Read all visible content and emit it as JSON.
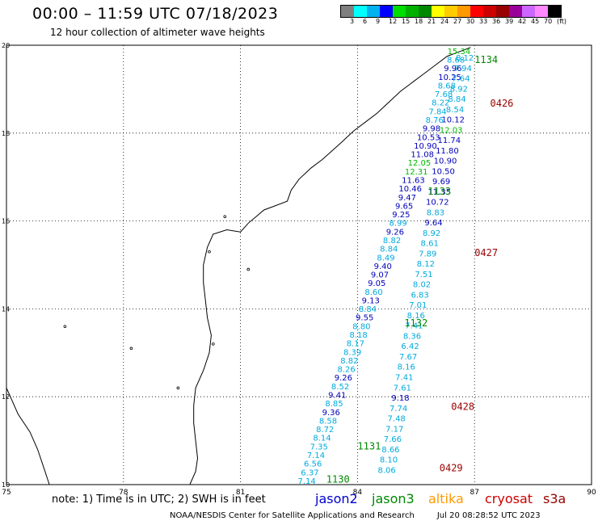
{
  "title": "00:00 – 11:59 UTC 07/18/2023",
  "subtitle": "12 hour collection of altimeter wave heights",
  "colorbar": {
    "colors": [
      "#7f7f7f",
      "#00ffff",
      "#00b2ee",
      "#0000ff",
      "#00dd00",
      "#00b000",
      "#008800",
      "#ffff00",
      "#ffcc00",
      "#ff9900",
      "#ff0000",
      "#cc0000",
      "#990000",
      "#990099",
      "#cc66ff",
      "#ff88ff",
      "#000000"
    ],
    "labels": [
      "3",
      "6",
      "9",
      "12",
      "15",
      "18",
      "21",
      "24",
      "27",
      "30",
      "33",
      "36",
      "39",
      "42",
      "45",
      "70",
      "(ft)"
    ]
  },
  "axes": {
    "x_ticks": [
      "75",
      "78",
      "81",
      "84",
      "87",
      "90"
    ],
    "y_ticks": [
      "20",
      "18",
      "16",
      "14",
      "12",
      "10"
    ],
    "lon_range": [
      75,
      90
    ],
    "lat_range": [
      10,
      20
    ]
  },
  "track_colors": {
    "jason2": "#0000cc",
    "jason3": "#008800",
    "altika": "#ff9900",
    "cryosat": "#cc0000",
    "s3a": "#990000"
  },
  "value_colors": {
    "low": "#00aadd",
    "mid": "#0000bb",
    "high": "#00bb00"
  },
  "passes": [
    {
      "label": "1134",
      "lon": 87.0,
      "lat": 19.6,
      "color": "#008800"
    },
    {
      "label": "0426",
      "lon": 87.4,
      "lat": 18.6,
      "color": "#990000"
    },
    {
      "label": "1133",
      "lon": 85.8,
      "lat": 16.6,
      "color": "#008800"
    },
    {
      "label": "0427",
      "lon": 87.0,
      "lat": 15.2,
      "color": "#990000"
    },
    {
      "label": "1132",
      "lon": 85.2,
      "lat": 13.6,
      "color": "#008800"
    },
    {
      "label": "0428",
      "lon": 86.4,
      "lat": 11.7,
      "color": "#990000"
    },
    {
      "label": "1131",
      "lon": 84.0,
      "lat": 10.8,
      "color": "#008800"
    },
    {
      "label": "0429",
      "lon": 86.1,
      "lat": 10.3,
      "color": "#990000"
    },
    {
      "label": "1130",
      "lon": 83.2,
      "lat": 10.05,
      "color": "#008800"
    }
  ],
  "wave_heights_a": [
    "15.34",
    "8.68",
    "9.96",
    "10.25",
    "8.68",
    "7.68",
    "8.22",
    "7.84",
    "8.76",
    "9.98",
    "10.53",
    "10.90",
    "11.08",
    "12.05",
    "12.31",
    "11.63",
    "10.46",
    "9.47",
    "9.65",
    "9.25",
    "8.99",
    "9.26",
    "8.82",
    "8.84",
    "8.49",
    "9.40",
    "9.07",
    "9.05",
    "8.60",
    "9.13",
    "8.84",
    "9.55",
    "8.80",
    "8.18",
    "8.17",
    "8.39",
    "8.82",
    "8.26",
    "9.26",
    "8.52",
    "9.41",
    "8.85",
    "9.36",
    "8.58",
    "8.72",
    "8.14",
    "7.35",
    "7.14",
    "6.56",
    "6.37",
    "7.14"
  ],
  "wave_heights_b": [
    "8.12",
    "7.94",
    "7.64",
    "8.92",
    "8.84",
    "8.54",
    "10.12",
    "12.03",
    "11.74",
    "11.80",
    "10.90",
    "10.50",
    "9.69",
    "11.35",
    "10.72",
    "8.83",
    "9.64",
    "8.92",
    "8.61",
    "7.89",
    "8.12",
    "7.51",
    "8.02",
    "6.83",
    "7.01",
    "8.16",
    "7.41",
    "8.36",
    "6.42",
    "7.67",
    "8.16",
    "7.41",
    "7.61",
    "9.18",
    "7.74",
    "7.48",
    "7.17",
    "7.66",
    "8.66",
    "8.10",
    "8.06"
  ],
  "note": "note:  1) Time is in UTC;  2) SWH is in feet",
  "legend": [
    {
      "name": "jason2",
      "color": "#0000cc",
      "offset": 390
    },
    {
      "name": "jason3",
      "color": "#008800",
      "offset": 460
    },
    {
      "name": "altika",
      "color": "#ff9900",
      "offset": 530
    },
    {
      "name": "cryosat",
      "color": "#cc0000",
      "offset": 600
    },
    {
      "name": "s3a",
      "color": "#990000",
      "offset": 672
    }
  ],
  "credit": "NOAA/NESDIS Center for Satellite Applications and Research",
  "timestamp": "Jul 20 08:28:52 UTC 2023"
}
